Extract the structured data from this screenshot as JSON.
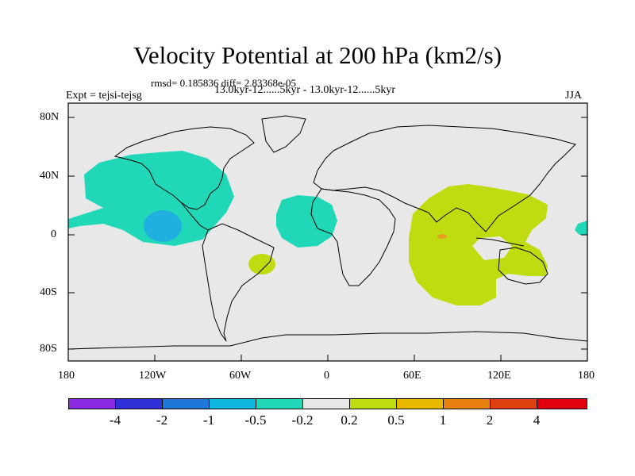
{
  "title": "Velocity Potential at 200 hPa (km2/s)",
  "stats_text": "rmsd= 0.185836 diff= 2.83368e-05",
  "experiment_text": "Expt = tejsi-tejsg",
  "period_text": "13.0kyr-12......5kyr - 13.0kyr-12......5kyr",
  "season": "JJA",
  "lat_labels": [
    "80N",
    "40N",
    "0",
    "40S",
    "80S"
  ],
  "lon_labels": [
    "180",
    "120W",
    "60W",
    "0",
    "60E",
    "120E",
    "180"
  ],
  "colorbar": {
    "colors": [
      "#8a2be2",
      "#3030d8",
      "#1e78d8",
      "#10b8e0",
      "#20d8b8",
      "#e8e8e8",
      "#c0dc10",
      "#e8b800",
      "#e88010",
      "#e04010",
      "#e00010"
    ],
    "labels": [
      "-4",
      "-2",
      "-1",
      "-0.5",
      "-0.2",
      "0.2",
      "0.5",
      "1",
      "2",
      "4"
    ]
  },
  "map_colors": {
    "ocean": "#e8e8e8",
    "neg_light": "#20d8b8",
    "neg_mid": "#20b0e0",
    "pos_light": "#c0dc10",
    "pos_mid": "#e8a020",
    "coast": "#000000"
  }
}
